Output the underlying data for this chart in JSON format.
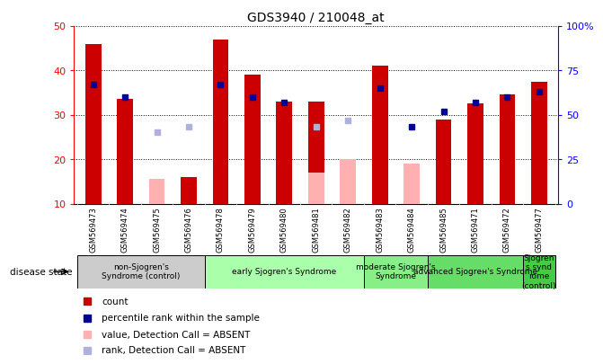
{
  "title": "GDS3940 / 210048_at",
  "samples": [
    "GSM569473",
    "GSM569474",
    "GSM569475",
    "GSM569476",
    "GSM569478",
    "GSM569479",
    "GSM569480",
    "GSM569481",
    "GSM569482",
    "GSM569483",
    "GSM569484",
    "GSM569485",
    "GSM569471",
    "GSM569472",
    "GSM569477"
  ],
  "count_values": [
    46,
    33.5,
    null,
    16,
    47,
    39,
    33,
    33,
    null,
    41,
    19,
    29,
    32.5,
    34.5,
    37.5
  ],
  "rank_values": [
    67,
    60,
    null,
    null,
    67,
    60,
    57,
    null,
    null,
    65,
    43,
    52,
    57,
    60,
    63
  ],
  "absent_value_values": [
    null,
    null,
    15.5,
    null,
    null,
    null,
    null,
    17,
    20,
    null,
    19,
    null,
    null,
    null,
    null
  ],
  "absent_rank_values": [
    null,
    null,
    40,
    43,
    null,
    null,
    null,
    43,
    47,
    null,
    null,
    null,
    null,
    null,
    null
  ],
  "ylim_left": [
    10,
    50
  ],
  "ylim_right": [
    0,
    100
  ],
  "groups": [
    {
      "label": "non-Sjogren's\nSyndrome (control)",
      "indices": [
        0,
        1,
        2,
        3
      ],
      "color": "#cccccc"
    },
    {
      "label": "early Sjogren's Syndrome",
      "indices": [
        4,
        5,
        6,
        7,
        8
      ],
      "color": "#aaffaa"
    },
    {
      "label": "moderate Sjogren's\nSyndrome",
      "indices": [
        9,
        10
      ],
      "color": "#88ee88"
    },
    {
      "label": "advanced Sjogrен's Syndrome",
      "indices": [
        11,
        12,
        13
      ],
      "color": "#66dd66"
    },
    {
      "label": "Sjogren\ns synd\nrome\n(control)",
      "indices": [
        14
      ],
      "color": "#44cc44"
    }
  ],
  "color_count": "#cc0000",
  "color_rank": "#000099",
  "color_absent_value": "#ffb0b0",
  "color_absent_rank": "#b0b0dd",
  "bg_plot": "#ffffff",
  "bg_tickarea": "#c8c8c8"
}
